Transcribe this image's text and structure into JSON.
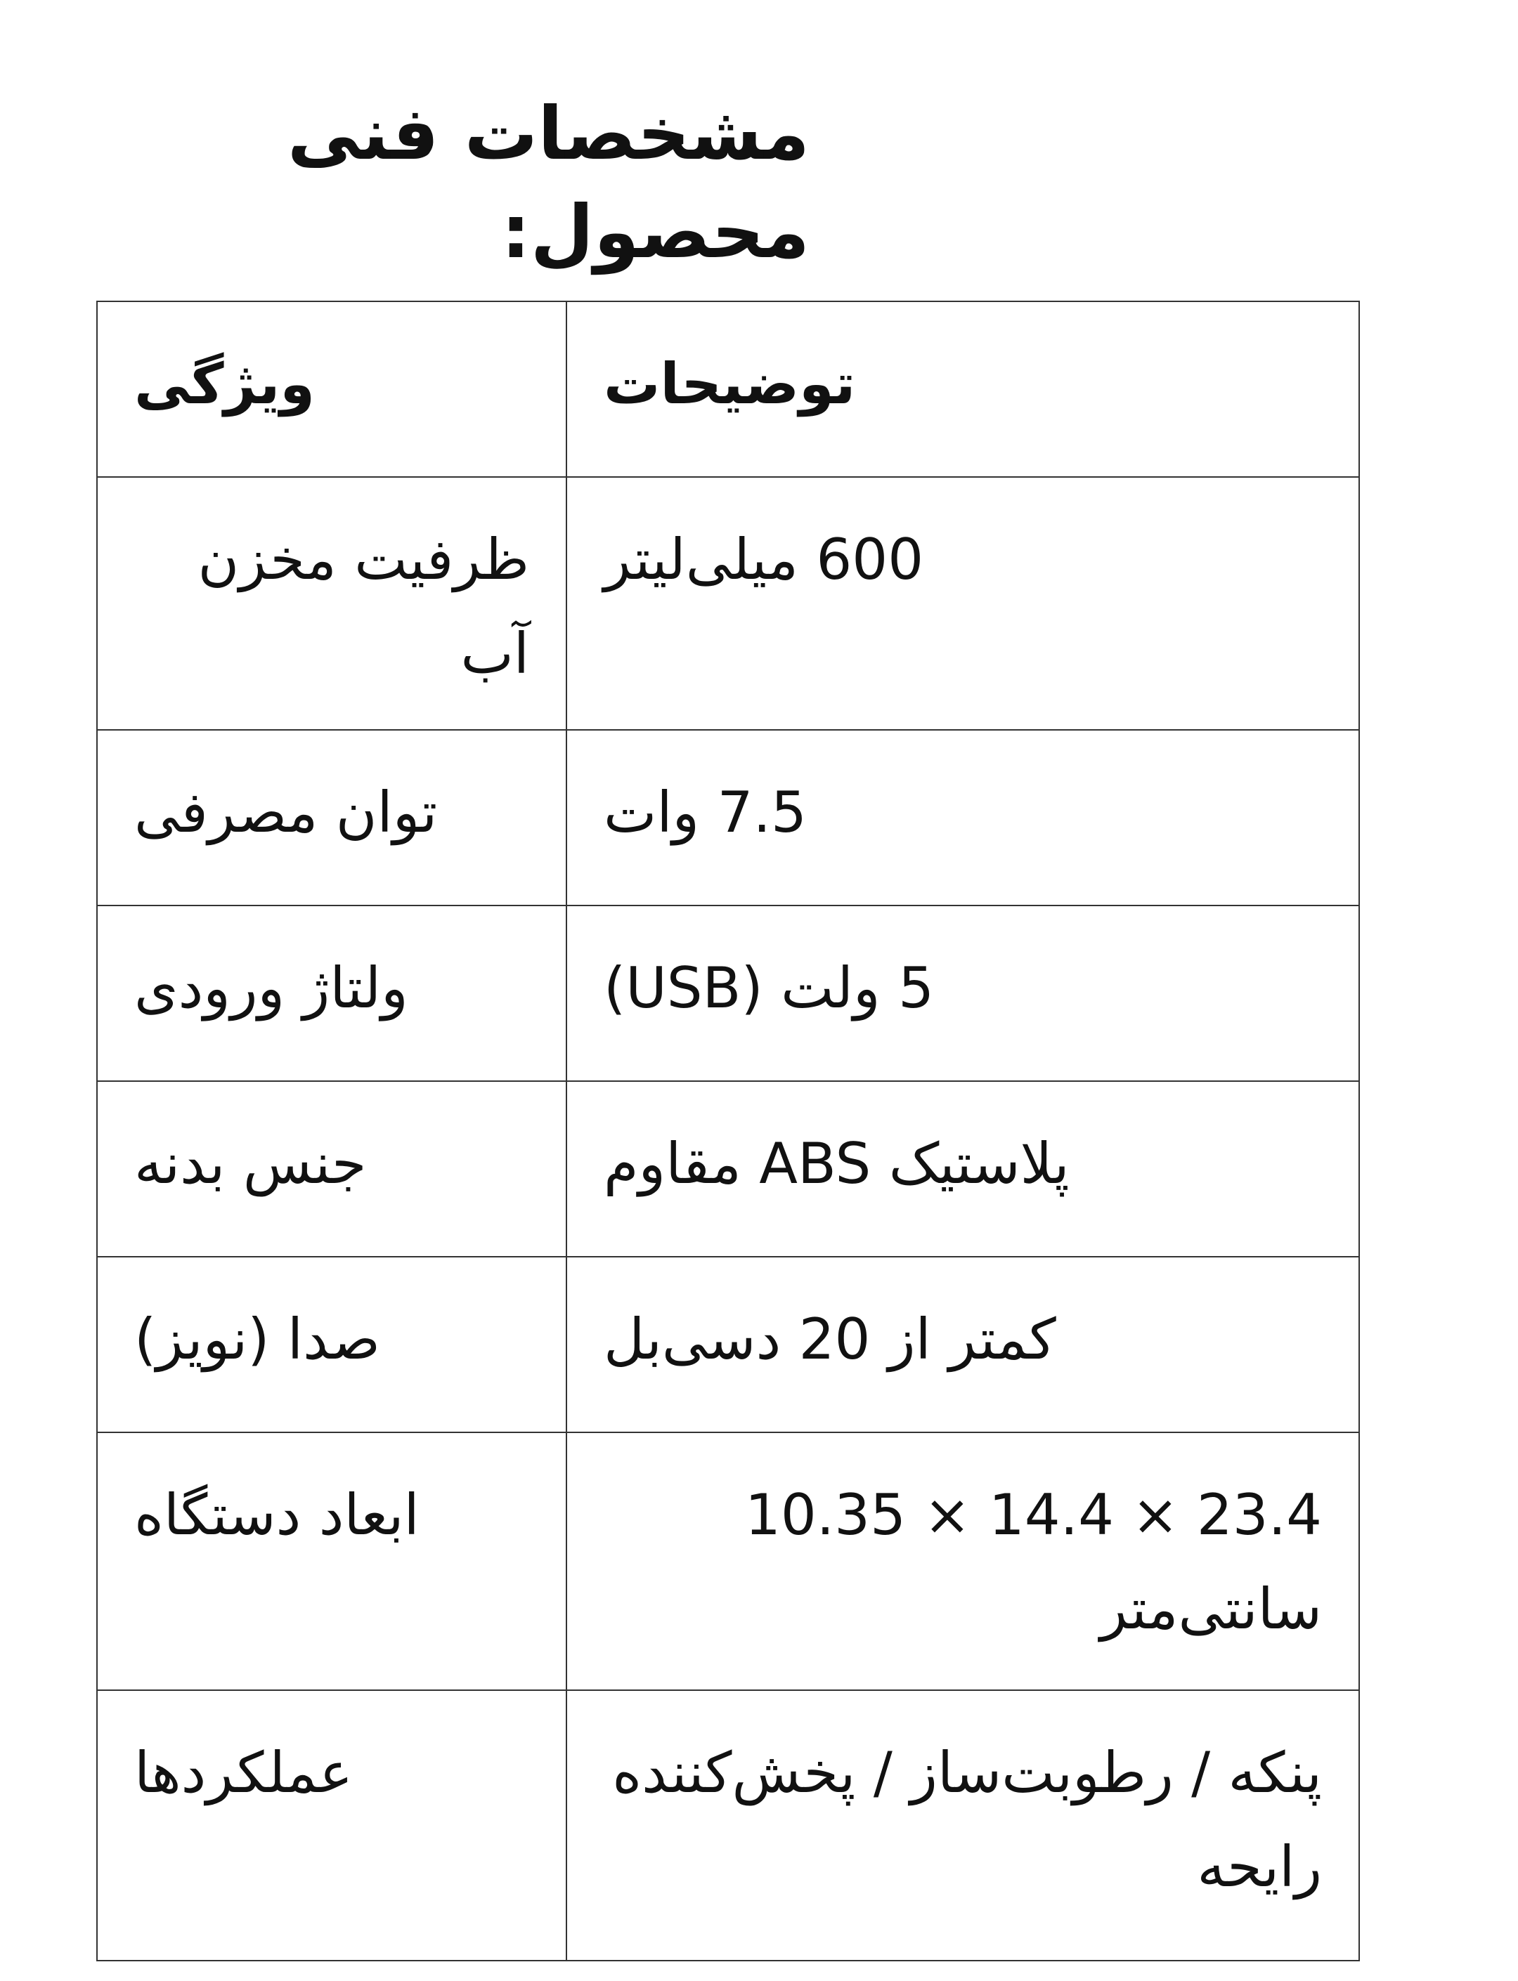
{
  "title": "مشخصات فنی محصول:",
  "table": {
    "headers": {
      "feature": "ویژگی",
      "description": "توضیحات"
    },
    "rows": [
      {
        "feature": "ظرفیت مخزن آب",
        "description": "600 میلی‌لیتر"
      },
      {
        "feature": "توان مصرفی",
        "description": "7.5 وات"
      },
      {
        "feature": "ولتاژ ورودی",
        "description": "5 ولت (USB)"
      },
      {
        "feature": "جنس بدنه",
        "description": "پلاستیک ABS مقاوم"
      },
      {
        "feature": "صدا (نویز)",
        "description": "کمتر از 20 دسی‌بل"
      },
      {
        "feature": "ابعاد دستگاه",
        "description": "23.4 × 14.4 × 10.35 سانتی‌متر"
      },
      {
        "feature": "عملکردها",
        "description": "پنکه / رطوبت‌ساز / پخش‌کننده رایحه"
      }
    ]
  }
}
